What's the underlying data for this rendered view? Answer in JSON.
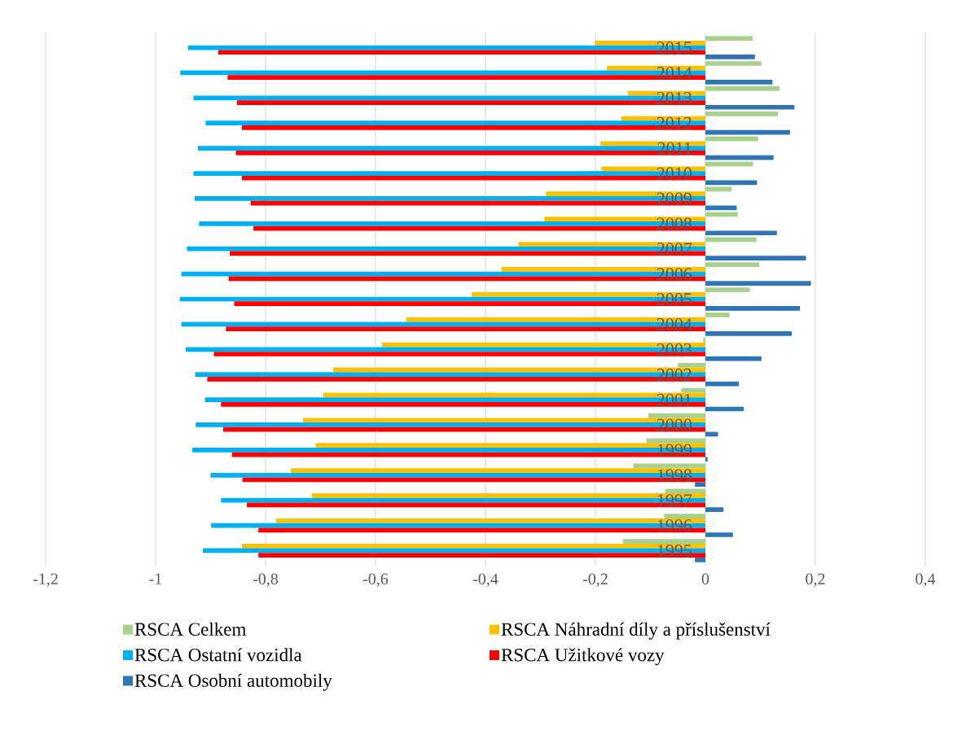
{
  "chart_data": {
    "type": "bar",
    "orientation": "horizontal",
    "categories": [
      "2015",
      "2014",
      "2013",
      "2012",
      "2011",
      "2010",
      "2009",
      "2008",
      "2007",
      "2006",
      "2005",
      "2004",
      "2003",
      "2002",
      "2001",
      "2000",
      "1999",
      "1998",
      "1997",
      "1996",
      "1995"
    ],
    "series": [
      {
        "name": "RSCA Celkem",
        "color": "#a9d18e",
        "values": [
          0.086,
          0.102,
          0.135,
          0.132,
          0.096,
          0.087,
          0.048,
          0.059,
          0.093,
          0.098,
          0.081,
          0.044,
          -0.004,
          -0.05,
          -0.044,
          -0.104,
          -0.107,
          -0.131,
          -0.073,
          -0.075,
          -0.15
        ]
      },
      {
        "name": "RSCA Náhradní díly a příslušenství",
        "color": "#ffc000",
        "values": [
          -0.201,
          -0.179,
          -0.141,
          -0.153,
          -0.191,
          -0.189,
          -0.29,
          -0.293,
          -0.34,
          -0.371,
          -0.425,
          -0.544,
          -0.588,
          -0.677,
          -0.695,
          -0.732,
          -0.709,
          -0.754,
          -0.716,
          -0.781,
          -0.843
        ]
      },
      {
        "name": "RSCA Ostatní vozidla",
        "color": "#00b0f0",
        "values": [
          -0.941,
          -0.955,
          -0.931,
          -0.909,
          -0.923,
          -0.931,
          -0.929,
          -0.921,
          -0.943,
          -0.953,
          -0.956,
          -0.953,
          -0.945,
          -0.928,
          -0.91,
          -0.927,
          -0.933,
          -0.9,
          -0.881,
          -0.899,
          -0.914
        ]
      },
      {
        "name": "RSCA Užitkové vozy",
        "color": "#ff0000",
        "values": [
          -0.886,
          -0.869,
          -0.852,
          -0.843,
          -0.854,
          -0.843,
          -0.827,
          -0.822,
          -0.865,
          -0.867,
          -0.857,
          -0.872,
          -0.894,
          -0.906,
          -0.881,
          -0.877,
          -0.861,
          -0.842,
          -0.834,
          -0.813,
          -0.813
        ]
      },
      {
        "name": "RSCA Osobní automobily",
        "color": "#2e75b6",
        "values": [
          0.09,
          0.122,
          0.162,
          0.154,
          0.124,
          0.094,
          0.057,
          0.13,
          0.183,
          0.192,
          0.172,
          0.157,
          0.102,
          0.061,
          0.07,
          0.023,
          0.004,
          -0.019,
          0.033,
          0.05,
          -0.019
        ]
      }
    ],
    "xlim": [
      -1.2,
      0.4
    ],
    "xticks": [
      {
        "value": -1.2,
        "label": "-1,2"
      },
      -1,
      {
        "value": -0.8,
        "label": "-0,8"
      },
      {
        "value": -0.6,
        "label": "-0,6"
      },
      {
        "value": -0.4,
        "label": "-0,4"
      },
      {
        "value": -0.2,
        "label": "-0,2"
      },
      0,
      {
        "value": 0.2,
        "label": "0,2"
      },
      {
        "value": 0.4,
        "label": "0,4"
      }
    ],
    "grid": "x",
    "legend": "bottom"
  }
}
